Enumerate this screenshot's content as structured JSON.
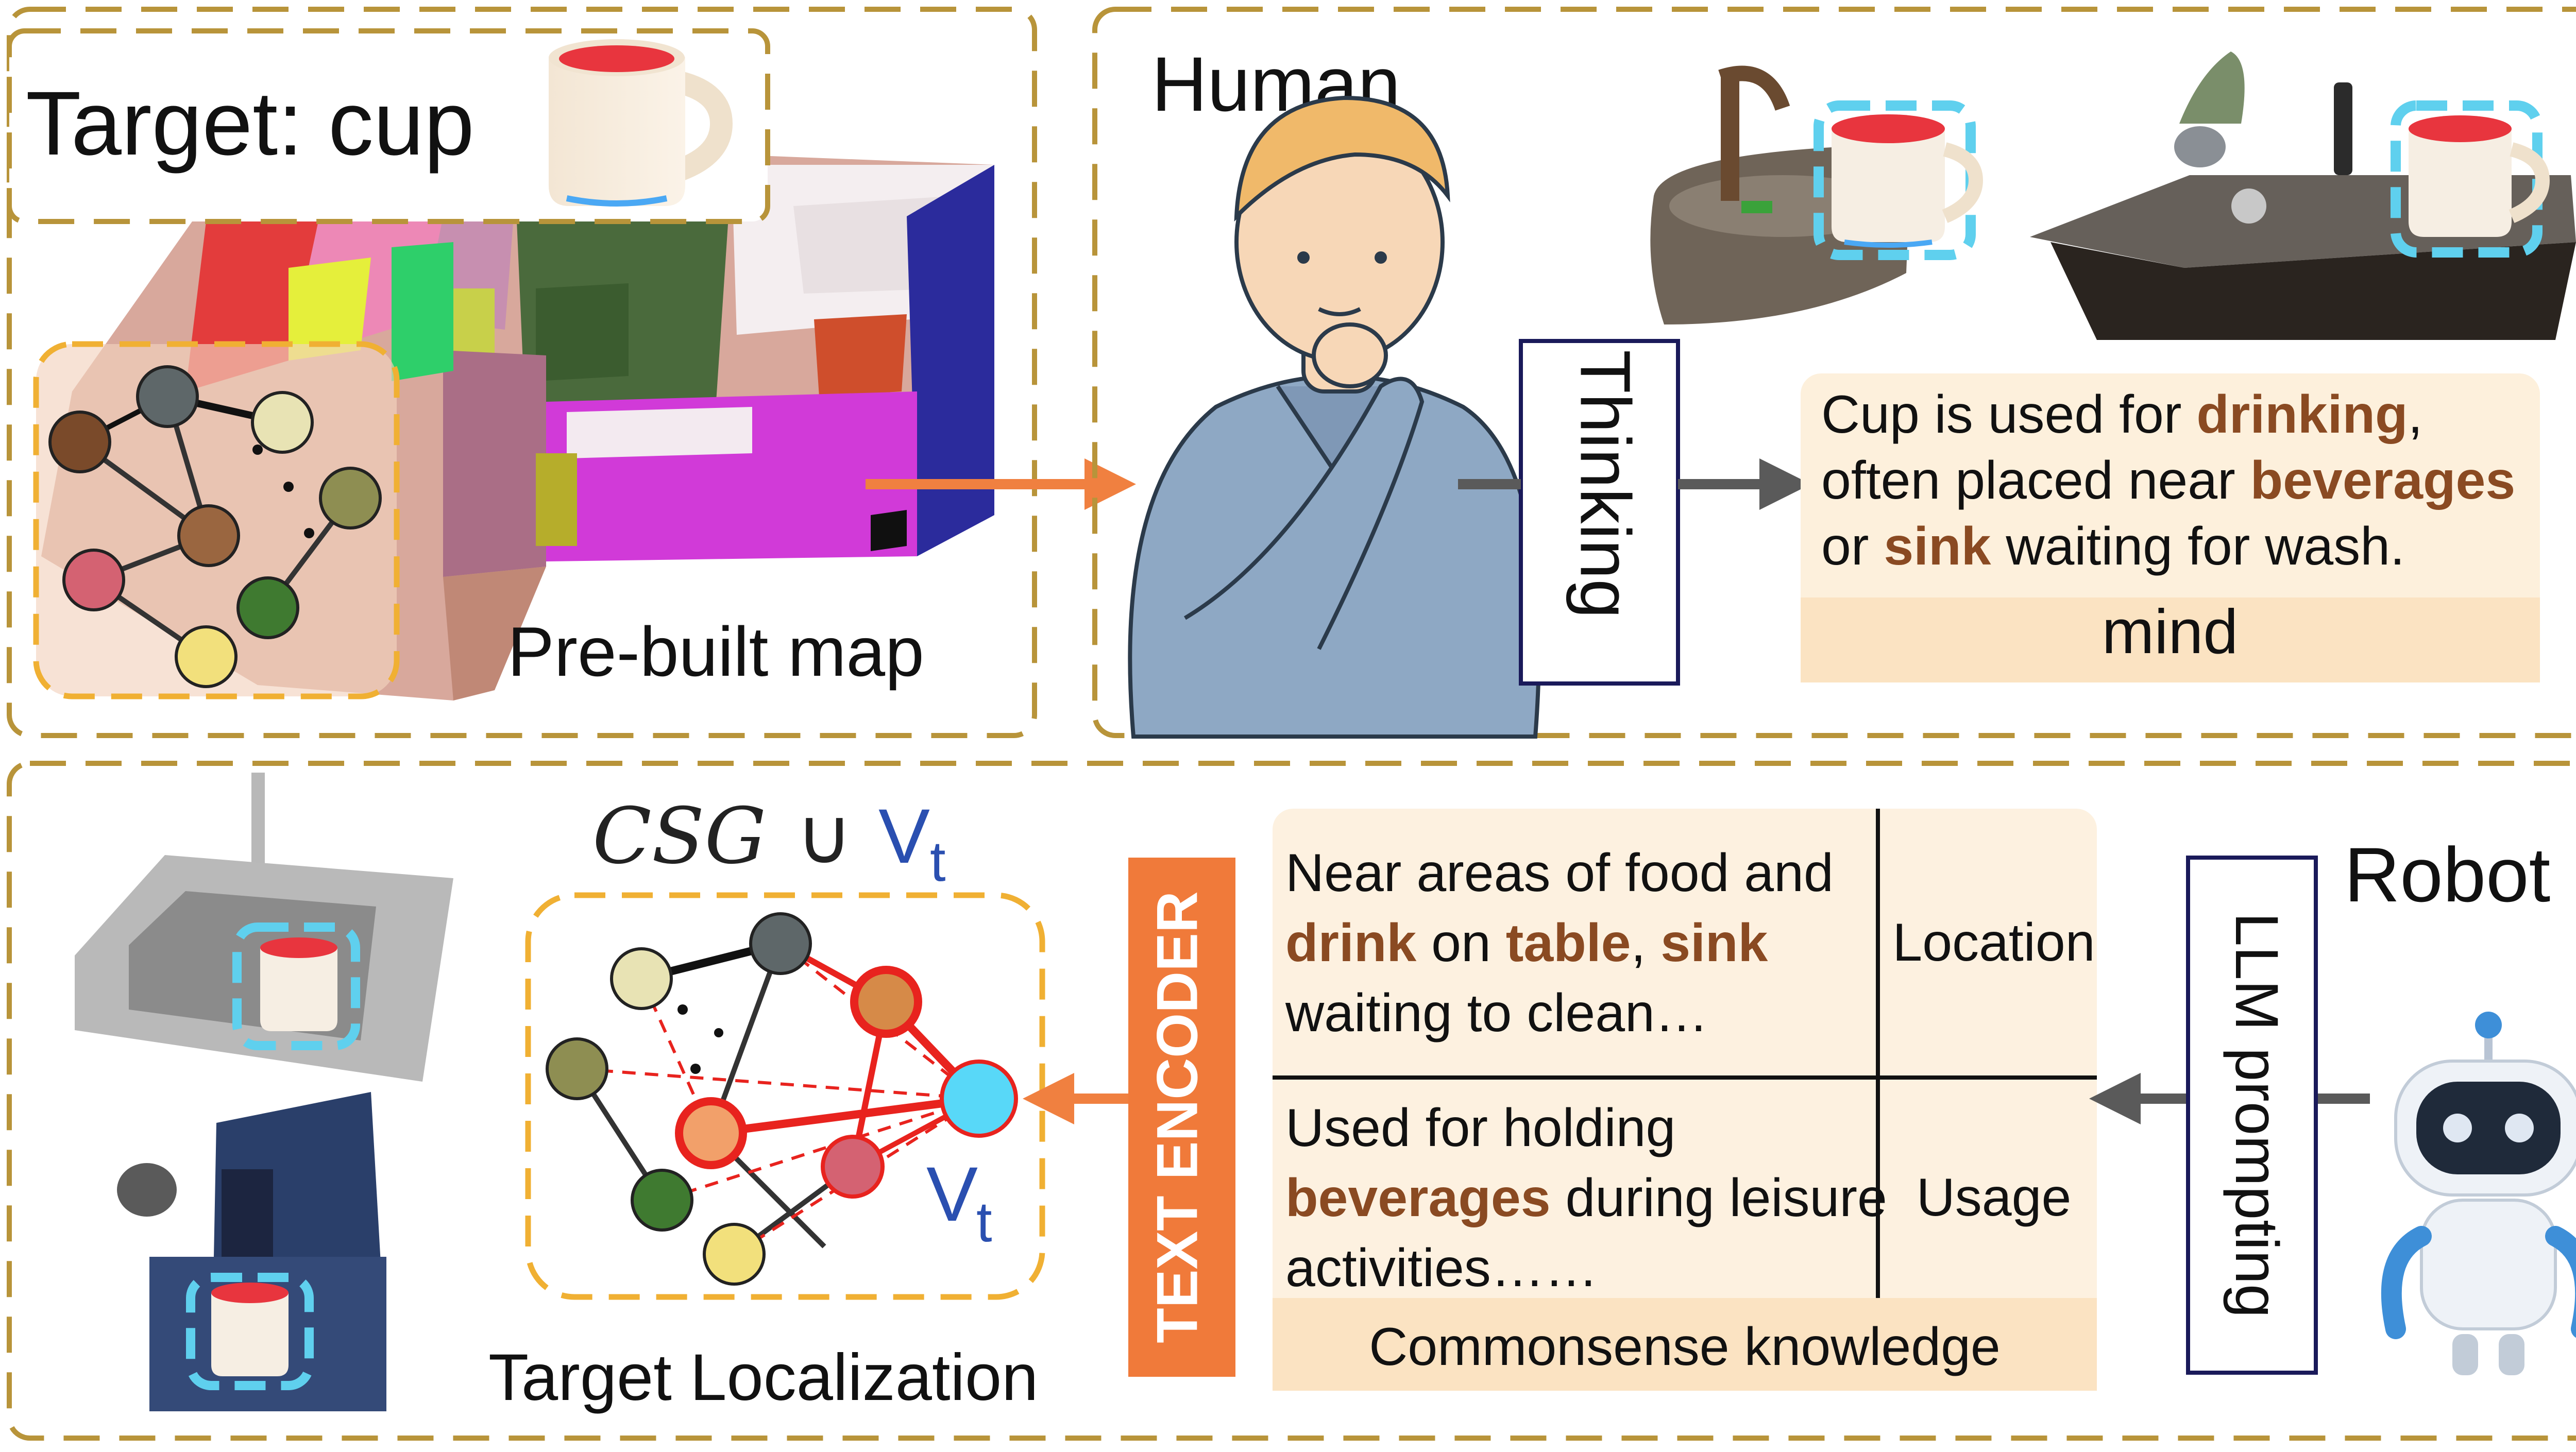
{
  "top_left": {
    "target_label": "Target: cup",
    "map_caption": "Pre-built map"
  },
  "top_right": {
    "human_label": "Human",
    "thinking_label": "Thinking",
    "mind_segments": [
      [
        {
          "t": "Cup is used for ",
          "k": false
        },
        {
          "t": "drinking",
          "k": true
        },
        {
          "t": ",",
          "k": false
        }
      ],
      [
        {
          "t": "often placed near ",
          "k": false
        },
        {
          "t": "beverages",
          "k": true
        }
      ],
      [
        {
          "t": "or ",
          "k": false
        },
        {
          "t": "sink",
          "k": true
        },
        {
          "t": " waiting for wash.",
          "k": false
        }
      ]
    ],
    "mind_label": "mind"
  },
  "bottom": {
    "formula_csg": "CSG",
    "formula_union": "∪",
    "formula_v": "V",
    "formula_sub": "t",
    "graph_v": "V",
    "graph_sub": "t",
    "localization_caption": "Target Localization",
    "text_encoder_label": "TEXT ENCODER",
    "knowledge_location_segments": [
      [
        {
          "t": "Near areas of food and",
          "k": false
        }
      ],
      [
        {
          "t": "drink",
          "k": true
        },
        {
          "t": " on ",
          "k": false
        },
        {
          "t": "table",
          "k": true
        },
        {
          "t": ", ",
          "k": false
        },
        {
          "t": "sink",
          "k": true
        }
      ],
      [
        {
          "t": "waiting to clean…",
          "k": false
        }
      ]
    ],
    "knowledge_location_label": "Location",
    "knowledge_usage_segments": [
      [
        {
          "t": "Used for holding",
          "k": false
        }
      ],
      [
        {
          "t": "beverages",
          "k": true
        },
        {
          "t": " during leisure",
          "k": false
        }
      ],
      [
        {
          "t": "activities……",
          "k": false
        }
      ]
    ],
    "knowledge_usage_label": "Usage",
    "knowledge_caption": "Commonsense knowledge",
    "llm_label": "LLM prompting",
    "robot_label": "Robot"
  },
  "colors": {
    "panel_border": "#b8943a",
    "inset_border": "#f0b033",
    "arrow_orange": "#f08040",
    "arrow_gray": "#5a5a5a",
    "keyword": "#8a4a22",
    "text_encoder_bg": "#f07a3a",
    "mind_bg": "#fdf0dc",
    "knowledge_bg": "#fdf1e0",
    "highlight_red": "#e8231e",
    "target_node": "#58d8f8",
    "vt_blue": "#2a4fb0"
  },
  "icons": [
    "cup-icon",
    "graph-icon",
    "human-illustration",
    "sink-icon",
    "counter-table-icon",
    "robot-icon",
    "coffee-machine-icon",
    "kitchen-sink-icon"
  ]
}
